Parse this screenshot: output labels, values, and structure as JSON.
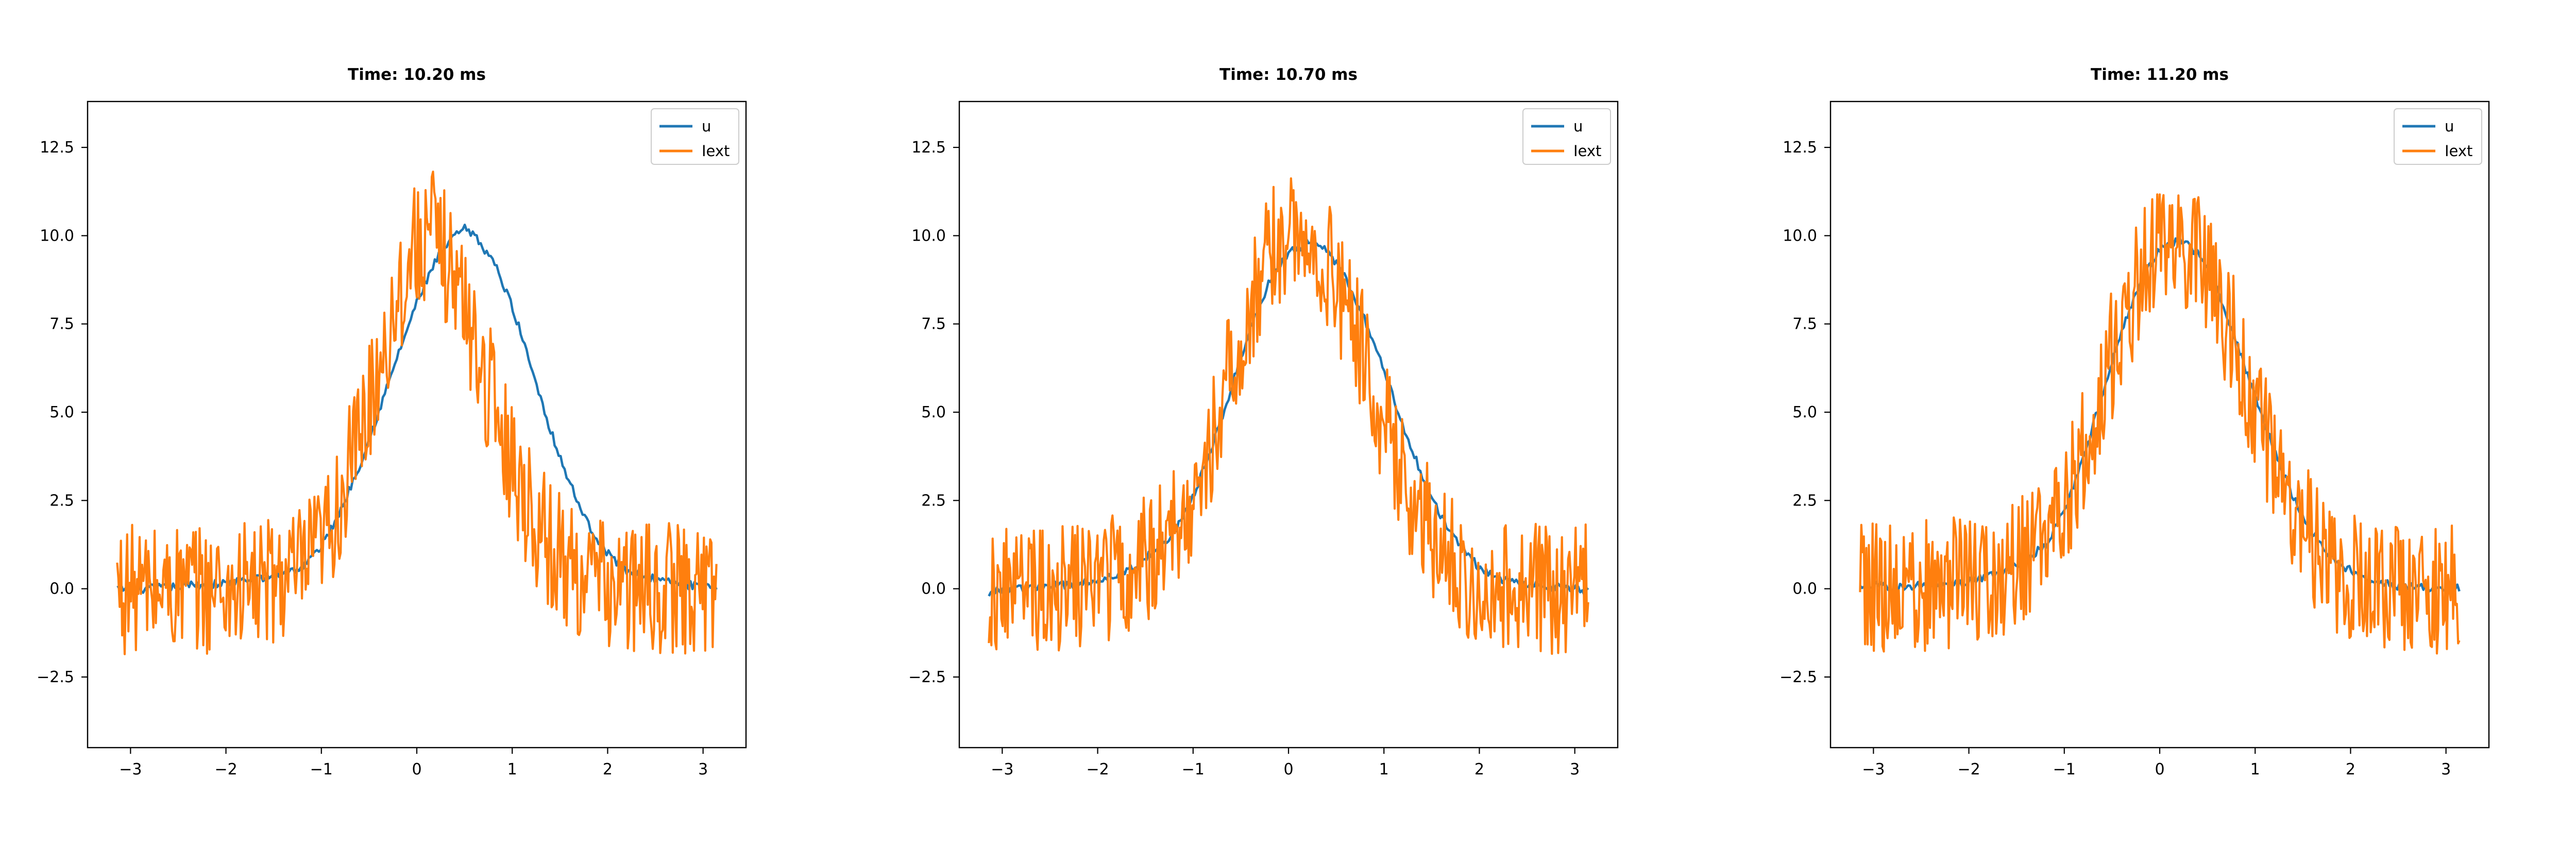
{
  "chart_data": [
    {
      "type": "line",
      "title": "Time: 10.20 ms",
      "xlabel": "",
      "ylabel": "",
      "xlim": [
        -3.45,
        3.45
      ],
      "ylim": [
        -4.5,
        13.8
      ],
      "xticks": [
        -3,
        -2,
        -1,
        0,
        1,
        2,
        3
      ],
      "xtick_labels": [
        "−3",
        "−2",
        "−1",
        "0",
        "1",
        "2",
        "3"
      ],
      "yticks": [
        -2.5,
        0,
        2.5,
        5,
        7.5,
        10,
        12.5
      ],
      "ytick_labels": [
        "−2.5",
        "0.0",
        "2.5",
        "5.0",
        "7.5",
        "10.0",
        "12.5"
      ],
      "grid": false,
      "legend_position": "top-right",
      "x": [
        -3.14,
        -2.8,
        -2.4,
        -2.0,
        -1.6,
        -1.2,
        -1.0,
        -0.8,
        -0.6,
        -0.4,
        -0.2,
        0.0,
        0.2,
        0.4,
        0.5,
        0.6,
        0.8,
        1.0,
        1.2,
        1.4,
        1.6,
        1.8,
        2.0,
        2.2,
        2.6,
        3.0,
        3.14
      ],
      "series": [
        {
          "name": "u",
          "values": [
            0.0,
            0.0,
            0.1,
            0.15,
            0.3,
            0.6,
            1.2,
            2.2,
            3.5,
            5.0,
            6.6,
            8.1,
            9.3,
            10.0,
            10.2,
            10.0,
            9.3,
            8.0,
            6.3,
            4.5,
            3.0,
            1.8,
            1.0,
            0.5,
            0.2,
            0.05,
            0.0
          ]
        },
        {
          "name": "Iext",
          "values": [
            0.0,
            0.0,
            0.0,
            0.0,
            0.1,
            0.5,
            1.2,
            2.5,
            4.3,
            6.3,
            8.3,
            9.8,
            10.0,
            8.8,
            8.0,
            7.0,
            5.3,
            3.6,
            2.2,
            1.2,
            0.6,
            0.3,
            0.1,
            0.0,
            0.0,
            0.0,
            0.0
          ],
          "noise_amplitude": 1.2
        }
      ]
    },
    {
      "type": "line",
      "title": "Time: 10.70 ms",
      "xlabel": "",
      "ylabel": "",
      "xlim": [
        -3.45,
        3.45
      ],
      "ylim": [
        -4.5,
        13.8
      ],
      "xticks": [
        -3,
        -2,
        -1,
        0,
        1,
        2,
        3
      ],
      "xtick_labels": [
        "−3",
        "−2",
        "−1",
        "0",
        "1",
        "2",
        "3"
      ],
      "yticks": [
        -2.5,
        0,
        2.5,
        5,
        7.5,
        10,
        12.5
      ],
      "ytick_labels": [
        "−2.5",
        "0.0",
        "2.5",
        "5.0",
        "7.5",
        "10.0",
        "12.5"
      ],
      "grid": false,
      "legend_position": "top-right",
      "x": [
        -3.14,
        -2.8,
        -2.4,
        -2.0,
        -1.6,
        -1.2,
        -1.0,
        -0.8,
        -0.6,
        -0.4,
        -0.2,
        0.0,
        0.2,
        0.4,
        0.6,
        0.8,
        1.0,
        1.2,
        1.4,
        1.6,
        1.8,
        2.0,
        2.2,
        2.6,
        3.0,
        3.14
      ],
      "series": [
        {
          "name": "u",
          "values": [
            -0.1,
            0.0,
            0.1,
            0.2,
            0.6,
            1.6,
            2.6,
            4.0,
            5.7,
            7.4,
            8.7,
            9.5,
            9.8,
            9.6,
            8.8,
            7.6,
            6.2,
            4.6,
            3.2,
            2.0,
            1.2,
            0.6,
            0.3,
            0.1,
            0.0,
            -0.1
          ]
        },
        {
          "name": "Iext",
          "values": [
            0.0,
            0.0,
            0.1,
            0.2,
            0.6,
            1.5,
            2.6,
            4.3,
            6.2,
            8.0,
            9.4,
            10.0,
            9.9,
            9.2,
            8.0,
            6.4,
            4.7,
            3.2,
            2.0,
            1.1,
            0.5,
            0.2,
            0.1,
            0.0,
            0.0,
            0.0
          ],
          "noise_amplitude": 1.2
        }
      ]
    },
    {
      "type": "line",
      "title": "Time: 11.20 ms",
      "xlabel": "",
      "ylabel": "",
      "xlim": [
        -3.45,
        3.45
      ],
      "ylim": [
        -4.5,
        13.8
      ],
      "xticks": [
        -3,
        -2,
        -1,
        0,
        1,
        2,
        3
      ],
      "xtick_labels": [
        "−3",
        "−2",
        "−1",
        "0",
        "1",
        "2",
        "3"
      ],
      "yticks": [
        -2.5,
        0,
        2.5,
        5,
        7.5,
        10,
        12.5
      ],
      "ytick_labels": [
        "−2.5",
        "0.0",
        "2.5",
        "5.0",
        "7.5",
        "10.0",
        "12.5"
      ],
      "grid": false,
      "legend_position": "top-right",
      "x": [
        -3.14,
        -2.8,
        -2.4,
        -2.0,
        -1.6,
        -1.2,
        -1.0,
        -0.8,
        -0.6,
        -0.4,
        -0.2,
        0.0,
        0.2,
        0.4,
        0.6,
        0.8,
        1.0,
        1.2,
        1.4,
        1.6,
        1.8,
        2.0,
        2.2,
        2.6,
        3.0,
        3.14
      ],
      "series": [
        {
          "name": "u",
          "values": [
            0.1,
            0.05,
            0.1,
            0.2,
            0.5,
            1.2,
            2.2,
            3.7,
            5.5,
            7.3,
            8.7,
            9.6,
            9.9,
            9.5,
            8.5,
            7.0,
            5.4,
            3.9,
            2.6,
            1.6,
            0.9,
            0.5,
            0.2,
            0.05,
            0.0,
            0.0
          ]
        },
        {
          "name": "Iext",
          "values": [
            0.0,
            0.0,
            0.1,
            0.2,
            0.5,
            1.2,
            2.2,
            3.8,
            5.7,
            7.5,
            8.9,
            9.7,
            9.9,
            9.4,
            8.3,
            6.8,
            5.1,
            3.6,
            2.3,
            1.3,
            0.7,
            0.3,
            0.1,
            0.0,
            0.0,
            0.0
          ],
          "noise_amplitude": 1.2
        }
      ]
    }
  ],
  "colors": {
    "u": "#1f77b4",
    "Iext": "#ff7f0e",
    "axes": "#000000",
    "background": "#ffffff"
  }
}
